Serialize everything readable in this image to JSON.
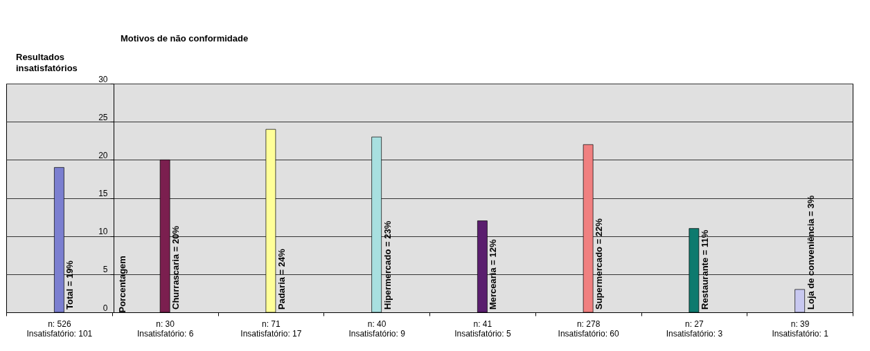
{
  "chart_data": {
    "type": "bar",
    "title": "Motivos de não conformidade",
    "annotations": [
      "Resultados insatisfatórios"
    ],
    "ylabel": "Porcentagem",
    "categories": [
      "n: 526\nInsatisfatório: 101",
      "n: 30\nInsatisfatório: 6",
      "n: 71\nInsatisfatório: 17",
      "n: 40\nInsatisfatório: 9",
      "n: 41\nInsatisfatório: 5",
      "n: 278\nInsatisfatório: 60",
      "n: 27\nInsatisfatório: 3",
      "n: 39\nInsatisfatório: 1"
    ],
    "values": [
      19,
      20,
      24,
      23,
      12,
      22,
      11,
      3
    ],
    "colors": [
      "#7b7fd0",
      "#7b1f4f",
      "#ffff99",
      "#a8e0e0",
      "#5a1e6e",
      "#f08080",
      "#0e7a6e",
      "#c8c8f0"
    ],
    "value_labels": [
      "Total = 19%",
      "Churrascaria = 20%",
      "Padaria = 24%",
      "Hipermercado = 23%",
      "Mercearia = 12%",
      "Supermercado = 22%",
      "Restaurante = 11%",
      "Loja de conveniência = 3%"
    ],
    "ylim": [
      0,
      30
    ],
    "yticks": [
      0,
      5,
      10,
      15,
      20,
      25,
      30
    ],
    "grid": "y",
    "legend": false
  }
}
